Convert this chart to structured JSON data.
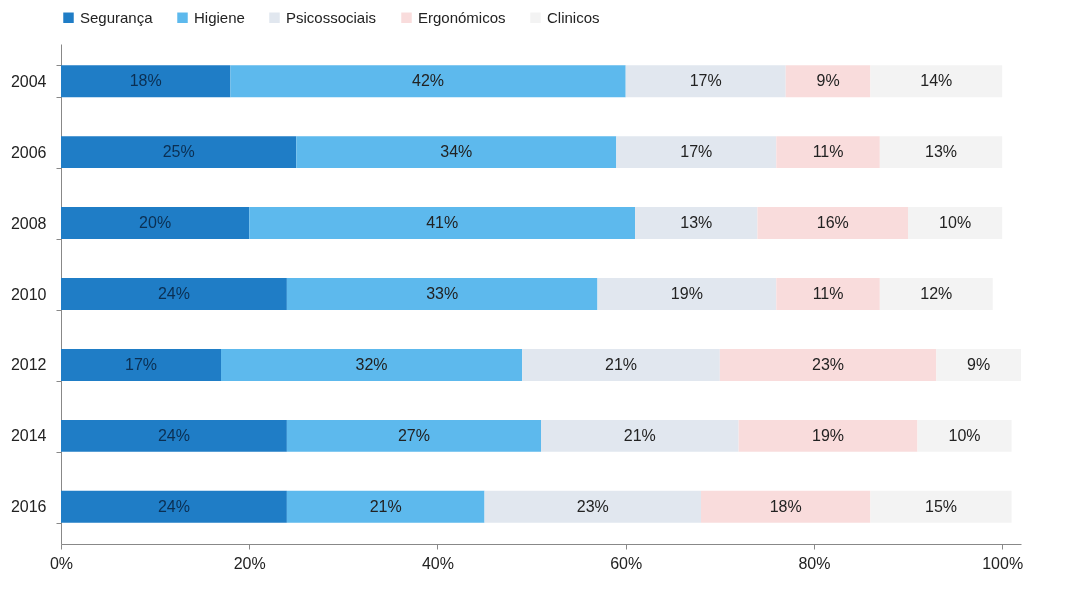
{
  "chart_data": {
    "type": "bar",
    "orientation": "horizontal",
    "stacked": true,
    "categories": [
      "2004",
      "2006",
      "2008",
      "2010",
      "2012",
      "2014",
      "2016"
    ],
    "series": [
      {
        "name": "Segurança",
        "color": "#1f7dc6",
        "values": [
          18,
          25,
          20,
          24,
          17,
          24,
          24
        ],
        "value_labels": [
          "18%",
          "25%",
          "20%",
          "24%",
          "17%",
          "24%",
          "24%"
        ]
      },
      {
        "name": "Higiene",
        "color": "#5db9ed",
        "values": [
          42,
          34,
          41,
          33,
          32,
          27,
          21
        ],
        "value_labels": [
          "42%",
          "34%",
          "41%",
          "33%",
          "32%",
          "27%",
          "21%"
        ]
      },
      {
        "name": "Psicossociais",
        "color": "#e1e7ef",
        "values": [
          17,
          17,
          13,
          19,
          21,
          21,
          23
        ],
        "value_labels": [
          "17%",
          "17%",
          "13%",
          "19%",
          "21%",
          "21%",
          "23%"
        ]
      },
      {
        "name": "Ergonómicos",
        "color": "#f9dcdc",
        "values": [
          9,
          11,
          16,
          11,
          23,
          19,
          18
        ],
        "value_labels": [
          "9%",
          "11%",
          "16%",
          "11%",
          "23%",
          "19%",
          "18%"
        ]
      },
      {
        "name": "Clinicos",
        "color": "#f3f3f3",
        "values": [
          14,
          13,
          10,
          12,
          9,
          10,
          15
        ],
        "value_labels": [
          "14%",
          "13%",
          "10%",
          "12%",
          "9%",
          "10%",
          "15%"
        ]
      }
    ],
    "xlim": [
      0,
      102
    ],
    "xticks": [
      {
        "value": 0,
        "label": "0%"
      },
      {
        "value": 20,
        "label": "20%"
      },
      {
        "value": 40,
        "label": "40%"
      },
      {
        "value": 60,
        "label": "60%"
      },
      {
        "value": 80,
        "label": "80%"
      },
      {
        "value": 100,
        "label": "100%"
      }
    ],
    "legend": "top",
    "grid": false
  }
}
